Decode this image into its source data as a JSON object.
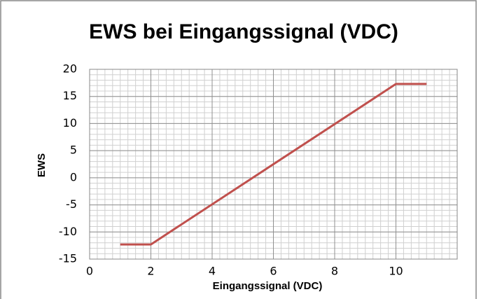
{
  "chart_data": {
    "type": "line",
    "title": "EWS bei Eingangssignal (VDC)",
    "x_label": "Eingangssignal (VDC)",
    "y_label": "EWS",
    "series": [
      {
        "name": "EWS",
        "color": "#c0504d",
        "x": [
          1,
          2,
          10,
          11
        ],
        "values": [
          -12.3,
          -12.3,
          17.3,
          17.3
        ]
      }
    ],
    "xlim": [
      0,
      12
    ],
    "xticks": [
      0,
      2,
      4,
      6,
      8,
      10
    ],
    "ylim": [
      -15,
      20
    ],
    "yticks": [
      -15,
      -10,
      -5,
      0,
      5,
      10,
      15,
      20
    ],
    "grid": true,
    "minor_grid": true
  }
}
